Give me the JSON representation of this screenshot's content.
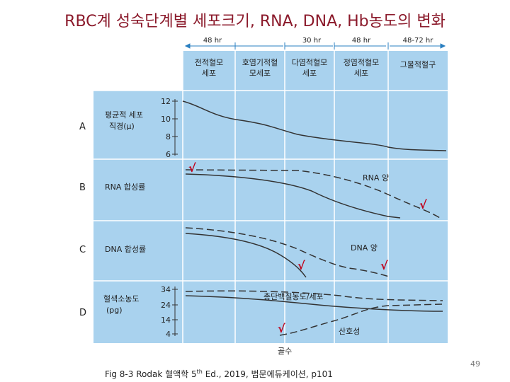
{
  "title": "RBC계 성숙단계별 세포크기, RNA, DNA, Hb농도의 변화",
  "timeline": [
    "48 hr",
    "30 hr",
    "48 hr",
    "48-72 hr"
  ],
  "stages": [
    [
      "전적혈모",
      "세포"
    ],
    [
      "호염기적혈",
      "모세포"
    ],
    [
      "다염적혈모",
      "세포"
    ],
    [
      "정염적혈모",
      "세포"
    ],
    [
      "그물적혈구"
    ]
  ],
  "rows": [
    {
      "letter": "A",
      "label": [
        "평균적 세포",
        "직경(μ)"
      ],
      "ticks": [
        "12",
        "10",
        "8",
        "6"
      ]
    },
    {
      "letter": "B",
      "label": [
        "RNA 합성률"
      ],
      "curve_label": "RNA 양"
    },
    {
      "letter": "C",
      "label": [
        "DNA 합성률"
      ],
      "curve_label": "DNA 양"
    },
    {
      "letter": "D",
      "label": [
        "혈색소농도",
        "(pg)"
      ],
      "ticks": [
        "34",
        "24",
        "14",
        "4"
      ],
      "curve_label": "총단백질농도/세포",
      "curve_label2": "산호성"
    }
  ],
  "x_label": "골수",
  "check_mark": "√",
  "caption": {
    "pre": "Fig 8-3 Rodak 혈액학 5",
    "sup": "th",
    "post": " Ed., 2019, 범문에듀케이션, p101"
  },
  "page_number": "49",
  "colors": {
    "title": "#8b1a2b",
    "panel": "#a9d2ee",
    "grid": "#ffffff",
    "check": "#c0001a"
  }
}
